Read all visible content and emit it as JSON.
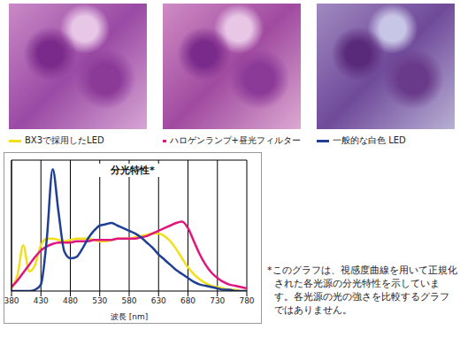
{
  "chart_data": {
    "type": "line",
    "title": "分光特性*",
    "x_label": "波長 [nm]",
    "x": [
      380,
      390,
      400,
      410,
      420,
      430,
      440,
      450,
      460,
      470,
      480,
      490,
      500,
      510,
      520,
      530,
      540,
      550,
      560,
      570,
      580,
      590,
      600,
      610,
      620,
      630,
      640,
      650,
      660,
      670,
      680,
      690,
      700,
      710,
      720,
      730,
      740,
      750,
      760,
      770,
      780
    ],
    "series": [
      {
        "name": "BX3で採用したLED",
        "color": "#f2df1a",
        "values": [
          2,
          12,
          35,
          15,
          20,
          35,
          40,
          40,
          39,
          38,
          39,
          40,
          40,
          40,
          39,
          38,
          38,
          39,
          40,
          40,
          40,
          41,
          42,
          43,
          44,
          44,
          42,
          38,
          32,
          25,
          18,
          13,
          9,
          6,
          4,
          3,
          2,
          1,
          1,
          0,
          0
        ]
      },
      {
        "name": "ハロゲンランプ+昼光フィルター",
        "color": "#e0157f",
        "values": [
          3,
          8,
          14,
          20,
          26,
          31,
          34,
          36,
          37,
          37,
          37,
          38,
          38,
          38,
          39,
          39,
          39,
          39,
          40,
          40,
          40,
          40,
          41,
          42,
          44,
          46,
          48,
          50,
          52,
          53,
          48,
          38,
          28,
          20,
          14,
          10,
          7,
          5,
          4,
          3,
          2
        ]
      },
      {
        "name": "一般的な白色 LED",
        "color": "#1f3f95",
        "values": [
          0,
          0,
          0,
          0,
          1,
          5,
          40,
          93,
          60,
          30,
          25,
          26,
          32,
          40,
          46,
          50,
          51,
          52,
          50,
          48,
          46,
          44,
          41,
          37,
          33,
          28,
          24,
          20,
          16,
          13,
          10,
          7,
          5,
          4,
          3,
          2,
          1,
          1,
          0,
          0,
          0
        ]
      }
    ],
    "xlim": [
      380,
      780
    ],
    "xticks": [
      380,
      430,
      480,
      530,
      580,
      630,
      680,
      730,
      780
    ],
    "ylim": [
      0,
      100
    ],
    "tick_labels": "x",
    "grid": true,
    "legend": "top",
    "annotations": [
      "*このグラフは、視感度曲線を用いて正規化された各光源の分光特性を示しています。各光源の光の強さを比較するグラフではありません。"
    ]
  }
}
